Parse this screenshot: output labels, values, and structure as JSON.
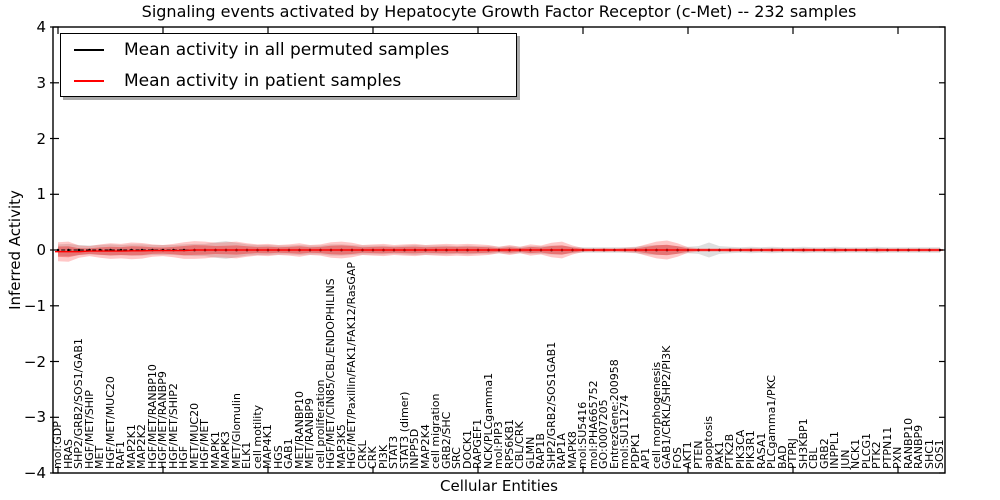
{
  "title": "Signaling events activated by Hepatocyte Growth Factor Receptor (c-Met) -- 232 samples",
  "axes": {
    "xlabel": "Cellular Entities",
    "ylabel": "Inferred Activity",
    "ylim": [
      -4,
      4
    ],
    "ytick_labels": [
      "4",
      "3",
      "2",
      "1",
      "0",
      "−1",
      "−2",
      "−3",
      "−4"
    ],
    "ytick_values": [
      4,
      3,
      2,
      1,
      0,
      -1,
      -2,
      -3,
      -4
    ],
    "frame_color": "#000000"
  },
  "legend": {
    "position": "upper left",
    "items": [
      {
        "label": "Mean activity in all permuted samples",
        "color": "#000000"
      },
      {
        "label": "Mean activity in patient samples",
        "color": "#ff0000"
      }
    ]
  },
  "chart_data": {
    "type": "line",
    "title": "Signaling events activated by Hepatocyte Growth Factor Receptor (c-Met) -- 232 samples",
    "xlabel": "Cellular Entities",
    "ylabel": "Inferred Activity",
    "ylim": [
      -4,
      4
    ],
    "grid": false,
    "legend_position": "upper left",
    "categories": [
      "mol:GDP",
      "HRAS",
      "SHP2/GRB2/SOS1/GAB1",
      "HGF/MET/SHIP",
      "MET",
      "HGF/MET/MUC20",
      "RAF1",
      "MAP2K1",
      "MAP2K2",
      "HGF/MET/RANBP10",
      "HGF/MET/RANBP9",
      "HGF/MET/SHIP2",
      "HGF",
      "MET/MUC20",
      "HGF/MET",
      "MAPK1",
      "MAPK3",
      "MET/Glomulin",
      "ELK1",
      "cell motility",
      "MAP4K1",
      "HGS",
      "GAB1",
      "MET/RANBP10",
      "MET/RANBP9",
      "cell proliferation",
      "HGF/MET/CIN85/CBL/ENDOPHILINS",
      "MAP3K5",
      "HGF/MET/Paxillin/FAK1/FAK12/RasGAP",
      "CRKL",
      "CRK",
      "PI3K",
      "STAT3",
      "STAT3 (dimer)",
      "INPP5D",
      "MAP2K4",
      "cell migration",
      "GRB2/SHC",
      "SRC",
      "DOCK1",
      "RAPGEF1",
      "NCK/PLCgamma1",
      "mol:PIP3",
      "RPS6KB1",
      "CBL/CRK",
      "GLMN",
      "RAP1B",
      "SHP2/GRB2/SOS1GAB1",
      "RAP1A",
      "MAPK8",
      "mol:SU5416",
      "mol:PHA665752",
      "GO:0007205",
      "EntrezGene:200958",
      "mol:SU11274",
      "PDPK1",
      "AP1",
      "cell morphogenesis",
      "GAB1/CRKL/SHP2/PI3K",
      "FOS",
      "AKT1",
      "PTEN",
      "apoptosis",
      "PAK1",
      "PTK2B",
      "PIK3CA",
      "PIK3R1",
      "RASA1",
      "PLCgamma1/PKC",
      "BAD",
      "PTPRJ",
      "SH3KBP1",
      "CBL",
      "GRB2",
      "INPPL1",
      "JUN",
      "NCK1",
      "PLCG1",
      "PTK2",
      "PTPN11",
      "PXN",
      "RANBP10",
      "RANBP9",
      "SHC1",
      "SOS1"
    ],
    "series": [
      {
        "name": "Mean activity in all permuted samples",
        "color": "#000000",
        "style": "dashed-with-dot-markers",
        "values": [
          0,
          0,
          0,
          0,
          0,
          0,
          0,
          0,
          0,
          0,
          0,
          0,
          0,
          0,
          0,
          0,
          0,
          0,
          0,
          0,
          0,
          0,
          0,
          0,
          0,
          0,
          0,
          0,
          0,
          0,
          0,
          0,
          0,
          0,
          0,
          0,
          0,
          0,
          0,
          0,
          0,
          0,
          0,
          0,
          0,
          0,
          0,
          0,
          0,
          0,
          0,
          0,
          0,
          0,
          0,
          0,
          0,
          0,
          0,
          0,
          0,
          0,
          0,
          0,
          0,
          0,
          0,
          0,
          0,
          0,
          0,
          0,
          0,
          0,
          0,
          0,
          0,
          0,
          0,
          0,
          0,
          0,
          0,
          0,
          0
        ]
      },
      {
        "name": "Mean activity in patient samples",
        "color": "#ff0000",
        "style": "solid",
        "values": [
          -0.03,
          -0.03,
          -0.03,
          -0.02,
          -0.02,
          -0.02,
          -0.02,
          -0.015,
          -0.015,
          -0.01,
          -0.01,
          -0.01,
          -0.01,
          0,
          0,
          0,
          0,
          0,
          0,
          0,
          0,
          0,
          0,
          0,
          0,
          0,
          0,
          0,
          0,
          0,
          0,
          0,
          0,
          0,
          0,
          0,
          0,
          0,
          0,
          0,
          0,
          0,
          0,
          0,
          0,
          0,
          0,
          0,
          0,
          0,
          0,
          0,
          0,
          0,
          0,
          0,
          0,
          0,
          0,
          0,
          0,
          0,
          0,
          0,
          0,
          0,
          0,
          0,
          0,
          0,
          0,
          0,
          0,
          0,
          0,
          0,
          0,
          0,
          0,
          0,
          0,
          0,
          0,
          0,
          0
        ]
      }
    ],
    "bands": [
      {
        "name": "permuted samples std band",
        "color": "rgba(0,0,0,0.13)",
        "half_widths": [
          0.1,
          0.11,
          0.09,
          0.08,
          0.09,
          0.1,
          0.09,
          0.1,
          0.1,
          0.09,
          0.09,
          0.09,
          0.1,
          0.11,
          0.11,
          0.14,
          0.16,
          0.13,
          0.1,
          0.09,
          0.09,
          0.08,
          0.08,
          0.09,
          0.08,
          0.08,
          0.1,
          0.1,
          0.09,
          0.08,
          0.08,
          0.08,
          0.07,
          0.08,
          0.09,
          0.08,
          0.08,
          0.08,
          0.07,
          0.08,
          0.07,
          0.07,
          0.06,
          0.07,
          0.06,
          0.07,
          0.07,
          0.08,
          0.08,
          0.06,
          0.05,
          0.05,
          0.05,
          0.05,
          0.05,
          0.06,
          0.08,
          0.09,
          0.09,
          0.07,
          0.06,
          0.07,
          0.135,
          0.07,
          0.06,
          0.05,
          0.06,
          0.05,
          0.06,
          0.05,
          0.05,
          0.06,
          0.05,
          0.05,
          0.06,
          0.05,
          0.05,
          0.05,
          0.06,
          0.05,
          0.05,
          0.05,
          0.05,
          0.05,
          0.05
        ]
      },
      {
        "name": "patient samples std band",
        "color": "rgba(255,30,30,0.25)",
        "inner_color": "rgba(230,0,0,0.33)",
        "half_widths": [
          0.17,
          0.18,
          0.11,
          0.09,
          0.12,
          0.14,
          0.13,
          0.15,
          0.14,
          0.11,
          0.1,
          0.12,
          0.15,
          0.16,
          0.15,
          0.13,
          0.14,
          0.15,
          0.12,
          0.1,
          0.11,
          0.09,
          0.1,
          0.12,
          0.09,
          0.1,
          0.14,
          0.15,
          0.13,
          0.09,
          0.1,
          0.11,
          0.09,
          0.1,
          0.11,
          0.09,
          0.1,
          0.11,
          0.1,
          0.11,
          0.1,
          0.09,
          0.06,
          0.09,
          0.06,
          0.1,
          0.08,
          0.13,
          0.15,
          0.08,
          0.035,
          0.03,
          0.035,
          0.03,
          0.04,
          0.05,
          0.1,
          0.15,
          0.17,
          0.12,
          0.05,
          0.03,
          0.03,
          0.03,
          0.035,
          0.03,
          0.035,
          0.03,
          0.035,
          0.03,
          0.03,
          0.035,
          0.03,
          0.03,
          0.035,
          0.03,
          0.03,
          0.03,
          0.035,
          0.03,
          0.03,
          0.03,
          0.03,
          0.03,
          0.03
        ]
      }
    ]
  }
}
